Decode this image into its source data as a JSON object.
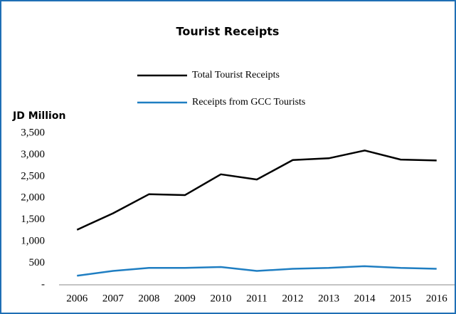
{
  "chart_data": {
    "type": "line",
    "title": "Tourist Receipts",
    "y_label": "JD Million",
    "categories": [
      "2006",
      "2007",
      "2008",
      "2009",
      "2010",
      "2011",
      "2012",
      "2013",
      "2014",
      "2015",
      "2016"
    ],
    "series": [
      {
        "name": "Total Tourist Receipts",
        "color": "#000000",
        "values": [
          1270,
          1650,
          2090,
          2070,
          2550,
          2430,
          2880,
          2920,
          3100,
          2890,
          2870
        ]
      },
      {
        "name": "Receipts from GCC Tourists",
        "color": "#1f7ec2",
        "values": [
          210,
          320,
          390,
          390,
          410,
          320,
          370,
          390,
          430,
          390,
          370
        ]
      }
    ],
    "ylim": [
      0,
      3500
    ],
    "yticks": [
      {
        "value": 0,
        "label": "-"
      },
      500,
      {
        "value": 1000,
        "label": "1,000"
      },
      {
        "value": 1500,
        "label": "1,500"
      },
      {
        "value": 2000,
        "label": "2,000"
      },
      {
        "value": 2500,
        "label": "2,500"
      },
      {
        "value": 3000,
        "label": "3,000"
      },
      {
        "value": 3500,
        "label": "3,500"
      }
    ],
    "grid": false
  }
}
